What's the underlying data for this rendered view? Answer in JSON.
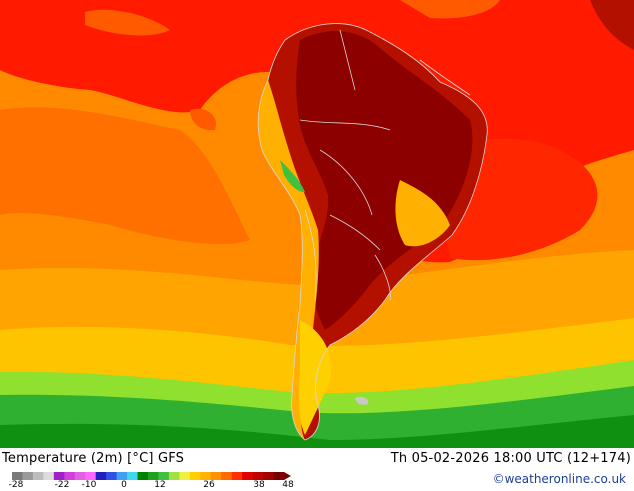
{
  "title_left": "Temperature (2m) [°C] GFS",
  "title_right": "Th 05-02-2026 18:00 UTC (12+174)",
  "credit": "©weatheronline.co.uk",
  "colorbar": {
    "tick_labels": [
      "-28",
      "-22",
      "-10",
      "0",
      "12",
      "26",
      "38",
      "48"
    ],
    "colors": [
      "#7a7a7a",
      "#9a9a9a",
      "#bdbdbd",
      "#dcdcdc",
      "#a020c8",
      "#d040d8",
      "#e060e0",
      "#ff66ff",
      "#2020c0",
      "#3050e8",
      "#40a0f0",
      "#40d8f0",
      "#008000",
      "#20a020",
      "#40c040",
      "#a0e040",
      "#f0f040",
      "#ffd000",
      "#ffb000",
      "#ff9000",
      "#ff6a00",
      "#ff3000",
      "#e00000",
      "#c00000",
      "#a00000",
      "#7a0000"
    ]
  },
  "palette": {
    "ocean_orange": "#ff8c00",
    "warm_red": "#ff2a00",
    "land_dark_red": "#a80a00",
    "yellow": "#ffd000",
    "green": "#40c040",
    "border": "#d8d8d8"
  }
}
